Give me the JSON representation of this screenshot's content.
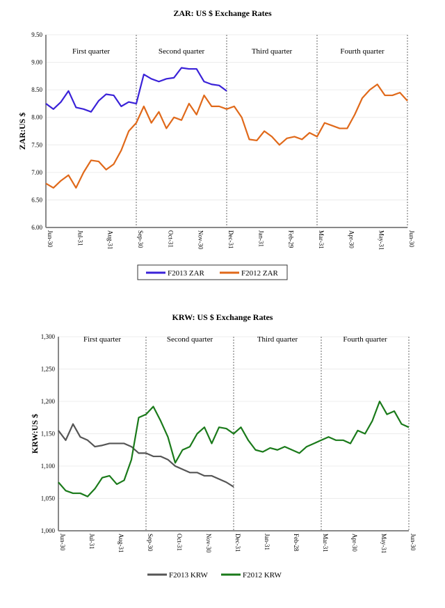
{
  "chart_data": [
    {
      "type": "line",
      "title": "ZAR: US $ Exchange Rates",
      "ylabel": "ZAR:US $",
      "xlabel": "",
      "ylim": [
        6.0,
        9.5
      ],
      "yticks": [
        "6.00",
        "6.50",
        "7.00",
        "7.50",
        "8.00",
        "8.50",
        "9.00",
        "9.50"
      ],
      "ytick_values": [
        6.0,
        6.5,
        7.0,
        7.5,
        8.0,
        8.5,
        9.0,
        9.5
      ],
      "xticks": [
        "Jun-30",
        "Jul-31",
        "Aug-31",
        "Sep-30",
        "Oct-31",
        "Nov-30",
        "Dec-31",
        "Jan-31",
        "Feb-29",
        "Mar-31",
        "Apr-30",
        "May-31",
        "Jun-30"
      ],
      "quarters": [
        "First quarter",
        "Second quarter",
        "Third quarter",
        "Fourth quarter"
      ],
      "grid": true,
      "legend_position": "bottom",
      "series": [
        {
          "name": "F2013 ZAR",
          "color": "#3a22d8",
          "values": [
            8.25,
            8.15,
            8.28,
            8.48,
            8.18,
            8.15,
            8.1,
            8.3,
            8.42,
            8.4,
            8.2,
            8.28,
            8.25,
            8.78,
            8.7,
            8.65,
            8.7,
            8.72,
            8.9,
            8.88,
            8.88,
            8.65,
            8.6,
            8.58,
            8.48
          ]
        },
        {
          "name": "F2012 ZAR",
          "color": "#e0691a",
          "values": [
            6.8,
            6.72,
            6.85,
            6.95,
            6.72,
            7.0,
            7.22,
            7.2,
            7.05,
            7.15,
            7.4,
            7.75,
            7.9,
            8.2,
            7.9,
            8.1,
            7.8,
            8.0,
            7.95,
            8.25,
            8.05,
            8.4,
            8.2,
            8.2,
            8.15,
            8.2,
            8.0,
            7.6,
            7.58,
            7.75,
            7.65,
            7.5,
            7.62,
            7.65,
            7.6,
            7.72,
            7.65,
            7.9,
            7.85,
            7.8,
            7.8,
            8.05,
            8.35,
            8.5,
            8.6,
            8.4,
            8.4,
            8.45,
            8.3
          ]
        }
      ]
    },
    {
      "type": "line",
      "title": "KRW: US $ Exchange Rates",
      "ylabel": "KRW:US $",
      "xlabel": "",
      "ylim": [
        1000,
        1300
      ],
      "yticks": [
        "1,000",
        "1,050",
        "1,100",
        "1,150",
        "1,200",
        "1,250",
        "1,300"
      ],
      "ytick_values": [
        1000,
        1050,
        1100,
        1150,
        1200,
        1250,
        1300
      ],
      "xticks": [
        "Jun-30",
        "Jul-31",
        "Aug-31",
        "Sep-30",
        "Oct-31",
        "Nov-30",
        "Dec-31",
        "Jan-31",
        "Feb-28",
        "Mar-31",
        "Apr-30",
        "May-31",
        "Jun-30"
      ],
      "quarters": [
        "First quarter",
        "Second quarter",
        "Third quarter",
        "Fourth quarter"
      ],
      "grid": true,
      "legend_position": "bottom",
      "series": [
        {
          "name": "F2013 KRW",
          "color": "#555555",
          "values": [
            1155,
            1140,
            1165,
            1145,
            1140,
            1130,
            1132,
            1135,
            1135,
            1135,
            1130,
            1120,
            1120,
            1115,
            1115,
            1110,
            1100,
            1095,
            1090,
            1090,
            1085,
            1085,
            1080,
            1075,
            1068
          ]
        },
        {
          "name": "F2012 KRW",
          "color": "#1a7a1a",
          "values": [
            1075,
            1062,
            1058,
            1058,
            1053,
            1065,
            1082,
            1085,
            1072,
            1078,
            1110,
            1175,
            1180,
            1192,
            1170,
            1145,
            1105,
            1125,
            1130,
            1150,
            1160,
            1135,
            1160,
            1158,
            1150,
            1160,
            1140,
            1125,
            1122,
            1128,
            1125,
            1130,
            1125,
            1120,
            1130,
            1135,
            1140,
            1145,
            1140,
            1140,
            1135,
            1155,
            1150,
            1170,
            1200,
            1180,
            1185,
            1165,
            1160
          ]
        }
      ]
    }
  ]
}
